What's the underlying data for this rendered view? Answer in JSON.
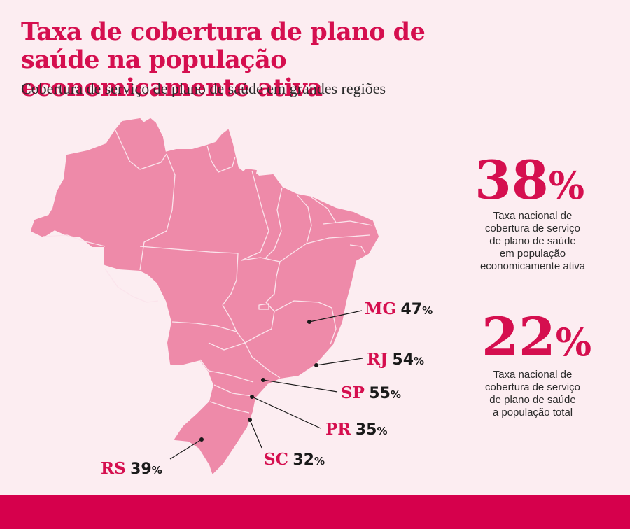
{
  "title": "Taxa de cobertura de plano de saúde na população economicamente ativa",
  "subtitle": "Cobertura de serviço de plano de saúde em grandes regiões",
  "colors": {
    "accent": "#d50f4f",
    "map_fill": "#ee8aa9",
    "background": "#fcedf1",
    "footer": "#d6004c"
  },
  "regions": [
    {
      "code": "MG",
      "value": "47",
      "unit": "%"
    },
    {
      "code": "RJ",
      "value": "54",
      "unit": "%"
    },
    {
      "code": "SP",
      "value": "55",
      "unit": "%"
    },
    {
      "code": "PR",
      "value": "35",
      "unit": "%"
    },
    {
      "code": "SC",
      "value": "32",
      "unit": "%"
    },
    {
      "code": "RS",
      "value": "39",
      "unit": "%"
    }
  ],
  "stats": [
    {
      "value": "38",
      "unit": "%",
      "text": [
        "Taxa nacional de",
        "cobertura de serviço",
        "de plano de saúde",
        "em população",
        "economicamente ativa"
      ]
    },
    {
      "value": "22",
      "unit": "%",
      "text": [
        "Taxa nacional de",
        "cobertura de serviço",
        "de plano de saúde",
        "a população total"
      ]
    }
  ]
}
